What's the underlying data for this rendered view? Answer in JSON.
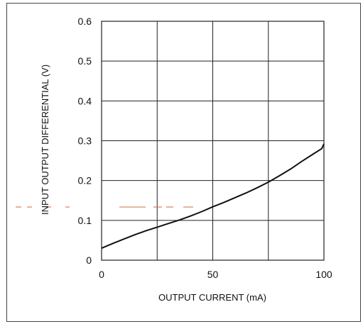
{
  "chart_data": {
    "type": "line",
    "title": "",
    "xlabel": "OUTPUT CURRENT (mA)",
    "ylabel": "INPUT OUTPUT DIFFERENTIAL (V)",
    "xlim": [
      0,
      100
    ],
    "ylim": [
      0,
      0.6
    ],
    "x_ticks": [
      0,
      50,
      100
    ],
    "x_tick_labels": [
      "0",
      "50",
      "100"
    ],
    "y_ticks": [
      0,
      0.1,
      0.2,
      0.3,
      0.4,
      0.5,
      0.6
    ],
    "y_tick_labels": [
      "0",
      "0.1",
      "0.2",
      "0.3",
      "0.4",
      "0.5",
      "0.6"
    ],
    "grid": true,
    "x_gridlines": [
      0,
      25,
      50,
      75,
      100
    ],
    "y_gridlines": [
      0,
      0.1,
      0.2,
      0.3,
      0.4,
      0.5,
      0.6
    ],
    "series": [
      {
        "x": [
          0,
          5,
          10,
          15,
          20,
          25,
          30,
          35,
          40,
          45,
          50,
          55,
          60,
          65,
          70,
          75,
          80,
          85,
          90,
          95,
          99,
          100
        ],
        "values": [
          0.03,
          0.042,
          0.053,
          0.064,
          0.074,
          0.083,
          0.092,
          0.101,
          0.111,
          0.122,
          0.134,
          0.145,
          0.157,
          0.169,
          0.182,
          0.196,
          0.212,
          0.229,
          0.248,
          0.266,
          0.28,
          0.292
        ]
      }
    ],
    "colors": {
      "line": "#111111",
      "grid": "#222222",
      "frame": "#444444",
      "artifact": "#cc6633"
    }
  }
}
